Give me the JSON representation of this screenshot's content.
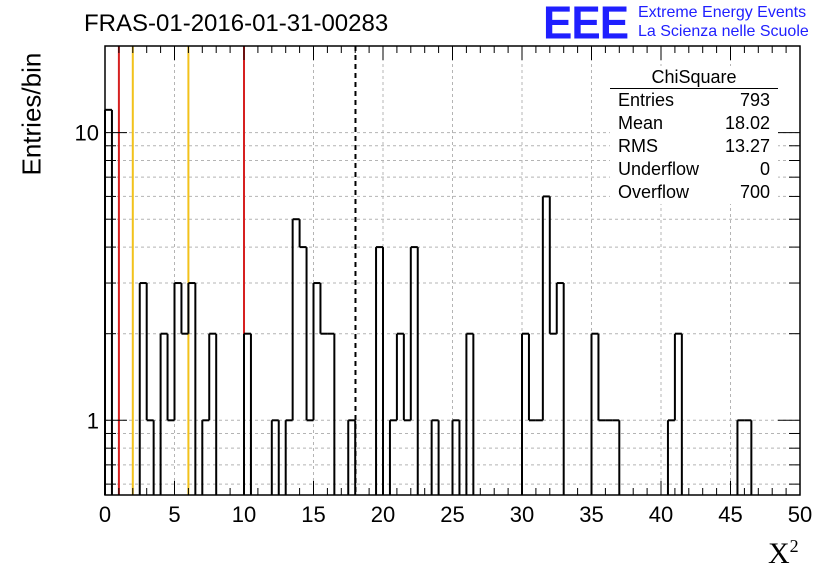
{
  "header": {
    "title": "FRAS-01-2016-01-31-00283",
    "logo_text": "EEE",
    "logo_line1": "Extreme Energy Events",
    "logo_line2": "La Scienza nelle Scuole",
    "logo_color": "#1f1fff"
  },
  "axes": {
    "ylabel": "Entries/bin",
    "xlabel": "X",
    "xlabel_sup": "2"
  },
  "stats": {
    "title": "ChiSquare",
    "rows": [
      {
        "label": "Entries",
        "value": "793"
      },
      {
        "label": "Mean",
        "value": "18.02"
      },
      {
        "label": "RMS",
        "value": "13.27"
      },
      {
        "label": "Underflow",
        "value": "0"
      },
      {
        "label": "Overflow",
        "value": "700"
      }
    ]
  },
  "chart_data": {
    "type": "histogram",
    "scale_y": "log",
    "xlim": [
      0,
      50
    ],
    "ylim": [
      0.55,
      20
    ],
    "bin_width": 0.5,
    "x_ticks": [
      "0",
      "5",
      "10",
      "15",
      "20",
      "25",
      "30",
      "35",
      "40",
      "45",
      "50"
    ],
    "y_ticks": [
      "1",
      "10"
    ],
    "grid": true,
    "bins": [
      {
        "x": 0.0,
        "y": 12
      },
      {
        "x": 0.5,
        "y": 0
      },
      {
        "x": 2.5,
        "y": 3
      },
      {
        "x": 3.0,
        "y": 1
      },
      {
        "x": 3.5,
        "y": 0
      },
      {
        "x": 4.0,
        "y": 2
      },
      {
        "x": 4.5,
        "y": 1
      },
      {
        "x": 5.0,
        "y": 3
      },
      {
        "x": 5.5,
        "y": 2
      },
      {
        "x": 6.0,
        "y": 3
      },
      {
        "x": 6.5,
        "y": 0
      },
      {
        "x": 7.0,
        "y": 1
      },
      {
        "x": 7.5,
        "y": 2
      },
      {
        "x": 8.0,
        "y": 0
      },
      {
        "x": 10.0,
        "y": 2
      },
      {
        "x": 10.5,
        "y": 0
      },
      {
        "x": 12.0,
        "y": 1
      },
      {
        "x": 12.5,
        "y": 0
      },
      {
        "x": 13.0,
        "y": 1
      },
      {
        "x": 13.5,
        "y": 5
      },
      {
        "x": 14.0,
        "y": 4
      },
      {
        "x": 14.5,
        "y": 1
      },
      {
        "x": 15.0,
        "y": 3
      },
      {
        "x": 15.5,
        "y": 2
      },
      {
        "x": 16.0,
        "y": 2
      },
      {
        "x": 16.5,
        "y": 0
      },
      {
        "x": 17.5,
        "y": 1
      },
      {
        "x": 18.0,
        "y": 0
      },
      {
        "x": 19.5,
        "y": 4
      },
      {
        "x": 20.0,
        "y": 0
      },
      {
        "x": 20.5,
        "y": 1
      },
      {
        "x": 21.0,
        "y": 2
      },
      {
        "x": 21.5,
        "y": 1
      },
      {
        "x": 22.0,
        "y": 4
      },
      {
        "x": 22.5,
        "y": 0
      },
      {
        "x": 23.5,
        "y": 1
      },
      {
        "x": 24.0,
        "y": 0
      },
      {
        "x": 25.0,
        "y": 1
      },
      {
        "x": 25.5,
        "y": 0
      },
      {
        "x": 26.0,
        "y": 2
      },
      {
        "x": 26.5,
        "y": 0
      },
      {
        "x": 30.0,
        "y": 2
      },
      {
        "x": 30.5,
        "y": 1
      },
      {
        "x": 31.0,
        "y": 1
      },
      {
        "x": 31.5,
        "y": 6
      },
      {
        "x": 32.0,
        "y": 2
      },
      {
        "x": 32.5,
        "y": 3
      },
      {
        "x": 33.0,
        "y": 0
      },
      {
        "x": 35.0,
        "y": 2
      },
      {
        "x": 35.5,
        "y": 1
      },
      {
        "x": 36.0,
        "y": 1
      },
      {
        "x": 36.5,
        "y": 1
      },
      {
        "x": 37.0,
        "y": 0
      },
      {
        "x": 40.5,
        "y": 1
      },
      {
        "x": 41.0,
        "y": 2
      },
      {
        "x": 41.5,
        "y": 0
      },
      {
        "x": 43.0,
        "y": 0
      },
      {
        "x": 45.5,
        "y": 1
      },
      {
        "x": 46.0,
        "y": 1
      },
      {
        "x": 46.5,
        "y": 0
      }
    ],
    "vertical_lines": [
      {
        "x": 1.0,
        "color": "#d62020",
        "style": "solid"
      },
      {
        "x": 2.0,
        "color": "#f2c21b",
        "style": "solid"
      },
      {
        "x": 6.0,
        "color": "#f2c21b",
        "style": "solid"
      },
      {
        "x": 10.0,
        "color": "#d62020",
        "style": "solid"
      },
      {
        "x": 18.02,
        "color": "#000000",
        "style": "dashed"
      }
    ]
  }
}
